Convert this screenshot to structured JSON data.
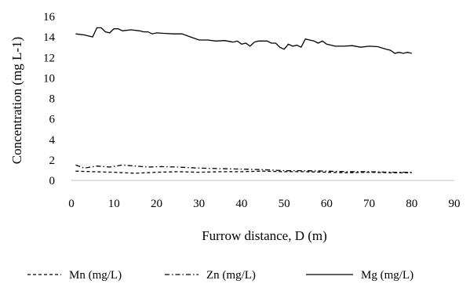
{
  "chart_data": {
    "type": "line",
    "title": "",
    "xlabel": "Furrow distance, D (m)",
    "ylabel": "Concentration (mg L-1)",
    "xlim": [
      0,
      90
    ],
    "ylim": [
      0,
      16
    ],
    "x_ticks": [
      "0",
      "10",
      "20",
      "30",
      "40",
      "50",
      "60",
      "70",
      "80",
      "90"
    ],
    "y_ticks": [
      "0",
      "2",
      "4",
      "6",
      "8",
      "10",
      "12",
      "14",
      "16"
    ],
    "grid": false,
    "legend_position": "bottom",
    "series": [
      {
        "name": "Mn (mg/L)",
        "dash": "dashed",
        "color": "#000000",
        "points": [
          [
            1,
            0.9
          ],
          [
            5,
            0.85
          ],
          [
            10,
            0.8
          ],
          [
            15,
            0.7
          ],
          [
            20,
            0.8
          ],
          [
            25,
            0.85
          ],
          [
            30,
            0.8
          ],
          [
            35,
            0.85
          ],
          [
            40,
            0.85
          ],
          [
            45,
            0.9
          ],
          [
            50,
            0.85
          ],
          [
            55,
            0.85
          ],
          [
            60,
            0.8
          ],
          [
            65,
            0.75
          ],
          [
            70,
            0.8
          ],
          [
            75,
            0.75
          ],
          [
            80,
            0.75
          ]
        ]
      },
      {
        "name": "Zn (mg/L)",
        "dash": "dash-dot",
        "color": "#000000",
        "points": [
          [
            1,
            1.5
          ],
          [
            3,
            1.2
          ],
          [
            6,
            1.4
          ],
          [
            9,
            1.3
          ],
          [
            12,
            1.5
          ],
          [
            15,
            1.4
          ],
          [
            18,
            1.3
          ],
          [
            21,
            1.35
          ],
          [
            25,
            1.3
          ],
          [
            30,
            1.2
          ],
          [
            35,
            1.15
          ],
          [
            40,
            1.1
          ],
          [
            45,
            1.05
          ],
          [
            50,
            0.95
          ],
          [
            55,
            0.95
          ],
          [
            60,
            0.9
          ],
          [
            65,
            0.85
          ],
          [
            70,
            0.85
          ],
          [
            75,
            0.8
          ],
          [
            80,
            0.8
          ]
        ]
      },
      {
        "name": "Mg (mg/L)",
        "dash": "solid",
        "color": "#000000",
        "points": [
          [
            1,
            14.3
          ],
          [
            3,
            14.2
          ],
          [
            5,
            14.0
          ],
          [
            6,
            14.9
          ],
          [
            7,
            14.9
          ],
          [
            8,
            14.5
          ],
          [
            9,
            14.4
          ],
          [
            10,
            14.8
          ],
          [
            11,
            14.8
          ],
          [
            12,
            14.6
          ],
          [
            14,
            14.7
          ],
          [
            16,
            14.6
          ],
          [
            17,
            14.5
          ],
          [
            18,
            14.5
          ],
          [
            19,
            14.3
          ],
          [
            20,
            14.4
          ],
          [
            22,
            14.35
          ],
          [
            24,
            14.3
          ],
          [
            26,
            14.3
          ],
          [
            28,
            14.0
          ],
          [
            30,
            13.7
          ],
          [
            32,
            13.7
          ],
          [
            34,
            13.6
          ],
          [
            36,
            13.65
          ],
          [
            38,
            13.5
          ],
          [
            39,
            13.6
          ],
          [
            40,
            13.3
          ],
          [
            41,
            13.4
          ],
          [
            42,
            13.1
          ],
          [
            43,
            13.5
          ],
          [
            44,
            13.6
          ],
          [
            46,
            13.6
          ],
          [
            47,
            13.4
          ],
          [
            48,
            13.4
          ],
          [
            49,
            13.0
          ],
          [
            50,
            12.8
          ],
          [
            51,
            13.3
          ],
          [
            52,
            13.1
          ],
          [
            53,
            13.2
          ],
          [
            54,
            13.0
          ],
          [
            55,
            13.8
          ],
          [
            56,
            13.7
          ],
          [
            57,
            13.6
          ],
          [
            58,
            13.4
          ],
          [
            59,
            13.6
          ],
          [
            60,
            13.3
          ],
          [
            62,
            13.1
          ],
          [
            64,
            13.1
          ],
          [
            66,
            13.15
          ],
          [
            68,
            13.0
          ],
          [
            70,
            13.1
          ],
          [
            72,
            13.05
          ],
          [
            74,
            12.8
          ],
          [
            75,
            12.7
          ],
          [
            76,
            12.4
          ],
          [
            77,
            12.5
          ],
          [
            78,
            12.4
          ],
          [
            79,
            12.5
          ],
          [
            80,
            12.4
          ]
        ]
      }
    ]
  }
}
